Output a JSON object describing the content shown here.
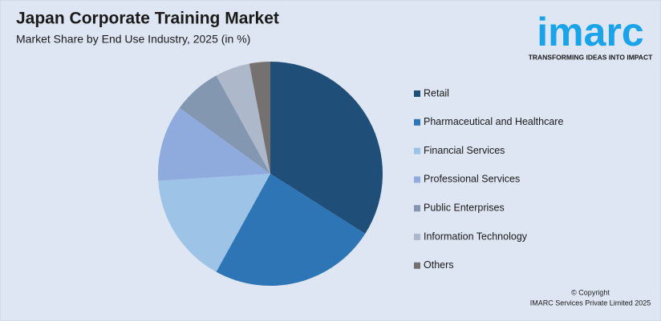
{
  "chart_data": {
    "type": "pie",
    "title": "Japan Corporate Training Market",
    "subtitle": "Market Share by End Use Industry, 2025 (in %)",
    "categories": [
      "Retail",
      "Pharmaceutical and Healthcare",
      "Financial Services",
      "Professional Services",
      "Public Enterprises",
      "Information Technology",
      "Others"
    ],
    "values": [
      34,
      24,
      16,
      11,
      7,
      5,
      3
    ],
    "colors": [
      "#1f4e79",
      "#2e75b6",
      "#9dc3e6",
      "#8faadc",
      "#8497b0",
      "#adb9ca",
      "#767171"
    ],
    "legend": "right"
  },
  "logo": {
    "text": "imarc",
    "tagline": "TRANSFORMING IDEAS INTO IMPACT"
  },
  "footer": {
    "copyright": "© Copyright",
    "company": "IMARC Services Private Limited 2025"
  }
}
